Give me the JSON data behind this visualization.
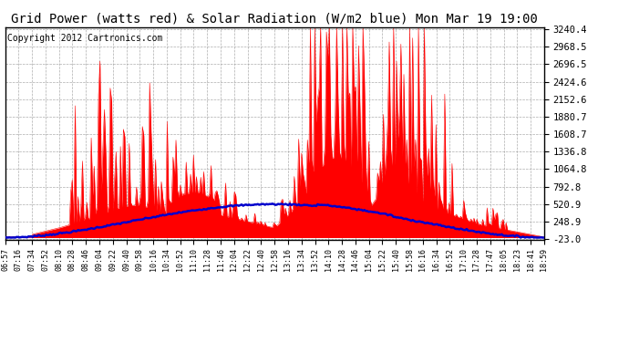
{
  "title": "Grid Power (watts red) & Solar Radiation (W/m2 blue) Mon Mar 19 19:00",
  "copyright": "Copyright 2012 Cartronics.com",
  "ymin": -23.0,
  "ymax": 3240.4,
  "yticks": [
    -23.0,
    248.9,
    520.9,
    792.8,
    1064.8,
    1336.8,
    1608.7,
    1880.7,
    2152.6,
    2424.6,
    2696.5,
    2968.5,
    3240.4
  ],
  "background_color": "#ffffff",
  "grid_color": "#999999",
  "fill_color": "#ff0000",
  "line_color": "#0000cc",
  "title_fontsize": 10,
  "copyright_fontsize": 7,
  "x_labels": [
    "06:57",
    "07:16",
    "07:34",
    "07:52",
    "08:10",
    "08:28",
    "08:46",
    "09:04",
    "09:22",
    "09:40",
    "09:58",
    "10:16",
    "10:34",
    "10:52",
    "11:10",
    "11:28",
    "11:46",
    "12:04",
    "12:22",
    "12:40",
    "12:58",
    "13:16",
    "13:34",
    "13:52",
    "14:10",
    "14:28",
    "14:46",
    "15:04",
    "15:22",
    "15:40",
    "15:58",
    "16:16",
    "16:34",
    "16:52",
    "17:10",
    "17:28",
    "17:47",
    "18:05",
    "18:23",
    "18:41",
    "18:59"
  ]
}
